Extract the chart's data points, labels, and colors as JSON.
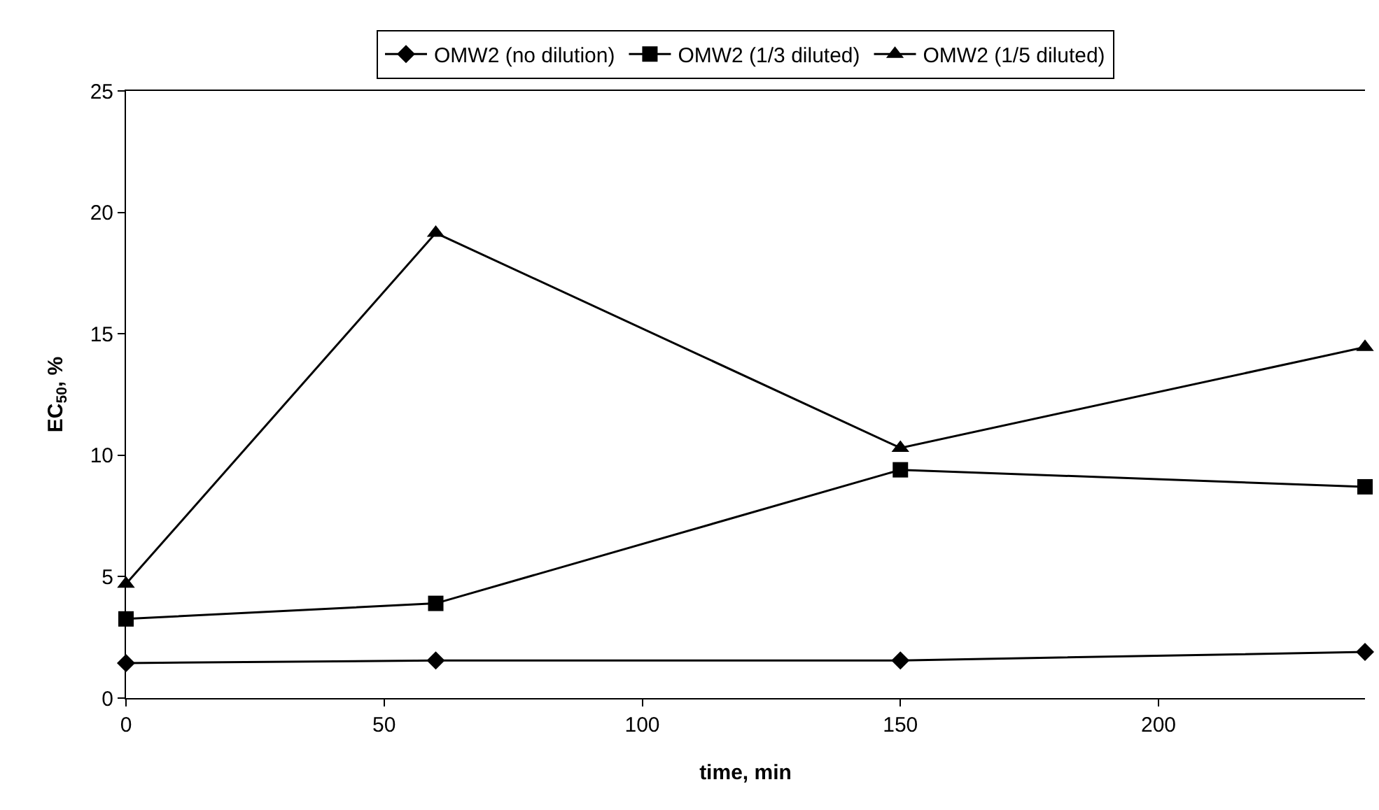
{
  "chart_data": {
    "type": "line",
    "xlabel": "time, min",
    "ylabel": "EC$_{50}$, %",
    "xlim": [
      0,
      240
    ],
    "xticks": [
      0,
      50,
      100,
      150,
      200
    ],
    "ylim": [
      0,
      25
    ],
    "yticks": [
      0,
      5,
      10,
      15,
      20,
      25
    ],
    "legend": "top",
    "line_style": "solid",
    "series": [
      {
        "name": "OMW2 (no dilution)",
        "color": "#000000",
        "marker": "diamond",
        "x": [
          0,
          60,
          150,
          240
        ],
        "values": [
          1.44,
          1.55,
          1.55,
          1.9
        ]
      },
      {
        "name": "OMW2 (1/3 diluted)",
        "color": "#000000",
        "marker": "square",
        "x": [
          0,
          60,
          150,
          240
        ],
        "values": [
          3.26,
          3.9,
          9.4,
          8.7
        ]
      },
      {
        "name": "OMW2 (1/5 diluted)",
        "color": "#000000",
        "marker": "triangle",
        "x": [
          0,
          60,
          150,
          240
        ],
        "values": [
          4.7,
          19.15,
          10.3,
          14.45
        ]
      }
    ]
  }
}
